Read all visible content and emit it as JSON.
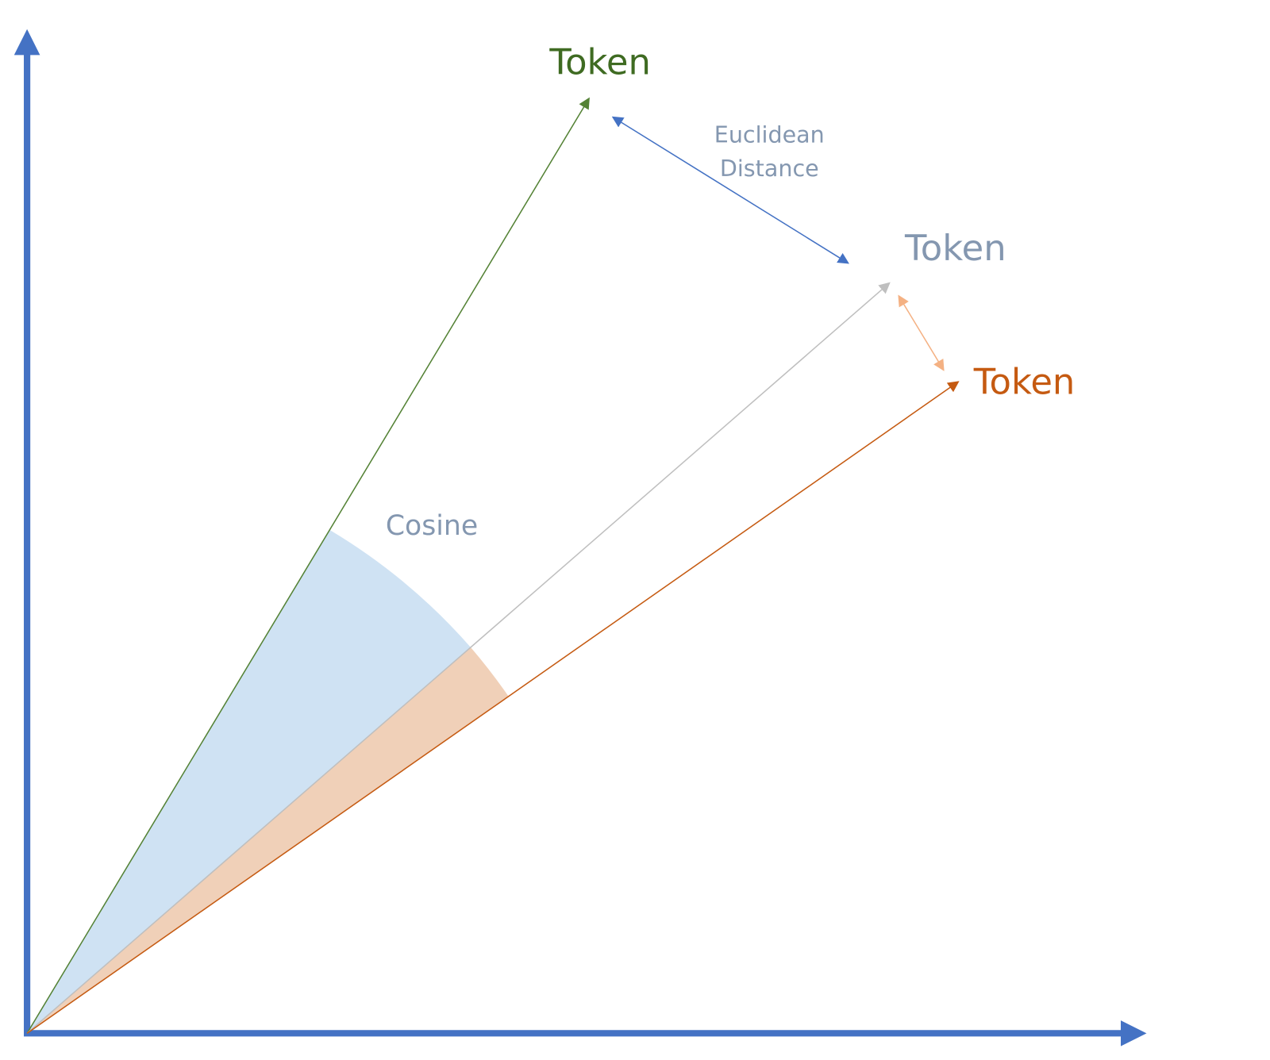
{
  "nodes": [
    {
      "label": "Token"
    },
    {
      "label": "Token"
    },
    {
      "label": "Token"
    }
  ],
  "annotations": {
    "euclidean": [
      "Euclidean",
      "Distance"
    ],
    "cosine": "Cosine"
  }
}
